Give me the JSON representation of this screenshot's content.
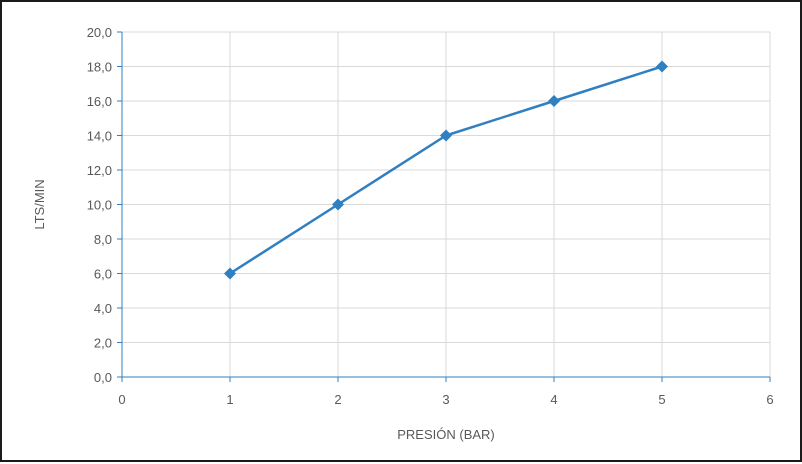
{
  "chart_data": {
    "type": "line",
    "title": "",
    "xlabel": "PRESIÓN (BAR)",
    "ylabel": "LTS/MIN",
    "xlim": [
      0,
      6
    ],
    "ylim": [
      0,
      20
    ],
    "x_ticks": [
      0,
      1,
      2,
      3,
      4,
      5,
      6
    ],
    "y_ticks": [
      0,
      2,
      4,
      6,
      8,
      10,
      12,
      14,
      16,
      18,
      20
    ],
    "x_tick_labels": [
      "0",
      "1",
      "2",
      "3",
      "4",
      "5",
      "6"
    ],
    "y_tick_labels": [
      "0,0",
      "2,0",
      "4,0",
      "6,0",
      "8,0",
      "10,0",
      "12,0",
      "14,0",
      "16,0",
      "18,0",
      "20,0"
    ],
    "grid": true,
    "legend": "none",
    "series": [
      {
        "x": [
          1,
          2,
          3,
          4,
          5
        ],
        "values": [
          6.0,
          10.0,
          14.0,
          16.0,
          18.0
        ],
        "color": "#2f7fc1",
        "marker": "diamond"
      }
    ]
  }
}
